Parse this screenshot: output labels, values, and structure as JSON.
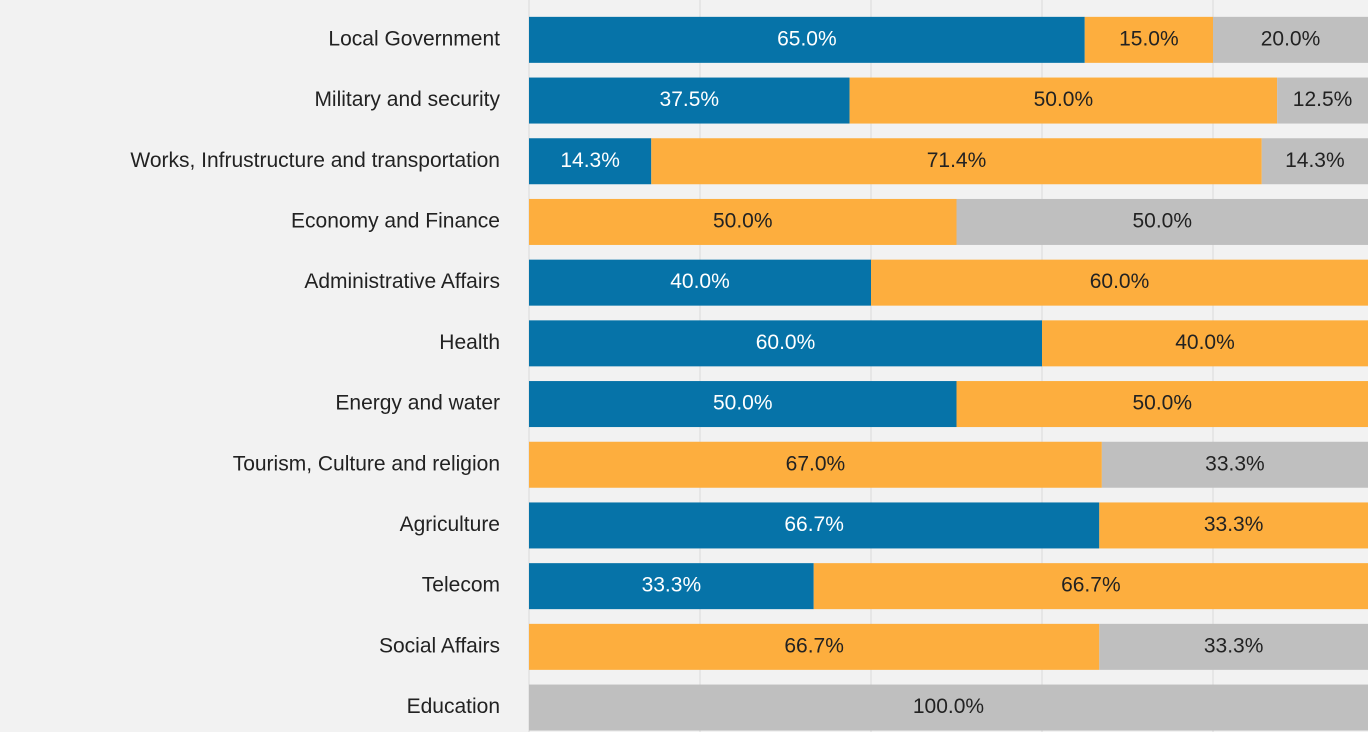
{
  "chart_data": {
    "type": "stacked_barh",
    "categories": [
      "Local Government",
      "Military and security",
      "Works, Infrustructure and transportation",
      "Economy and Finance",
      "Administrative Affairs",
      "Health",
      "Energy and water",
      "Tourism, Culture and religion",
      "Agriculture",
      "Telecom",
      "Social Affairs",
      "Education"
    ],
    "series": [
      {
        "color": "#0673a8",
        "text_color": "#ffffff",
        "values": [
          65.0,
          37.5,
          14.3,
          null,
          40.0,
          60.0,
          50.0,
          null,
          66.7,
          33.3,
          null,
          null
        ],
        "value_labels": [
          "65.0%",
          "37.5%",
          "14.3%",
          null,
          "40.0%",
          "60.0%",
          "50.0%",
          null,
          "66.7%",
          "33.3%",
          null,
          null
        ]
      },
      {
        "color": "#fdae3e",
        "text_color": "#222222",
        "values": [
          15.0,
          50.0,
          71.4,
          50.0,
          60.0,
          40.0,
          50.0,
          67.0,
          33.3,
          66.7,
          66.7,
          null
        ],
        "value_labels": [
          "15.0%",
          "50.0%",
          "71.4%",
          "50.0%",
          "60.0%",
          "40.0%",
          "50.0%",
          "67.0%",
          "33.3%",
          "66.7%",
          "66.7%",
          null
        ]
      },
      {
        "color": "#bfbfbf",
        "text_color": "#222222",
        "values": [
          20.0,
          12.5,
          14.3,
          50.0,
          null,
          null,
          null,
          33.3,
          null,
          null,
          33.3,
          100.0
        ],
        "value_labels": [
          "20.0%",
          "12.5%",
          "14.3%",
          "50.0%",
          null,
          null,
          null,
          "33.3%",
          null,
          null,
          "33.3%",
          "100.0%"
        ]
      }
    ],
    "xlim": [
      0,
      100
    ],
    "xticks": [
      0,
      20,
      40,
      60,
      80,
      100
    ],
    "grid": true
  }
}
